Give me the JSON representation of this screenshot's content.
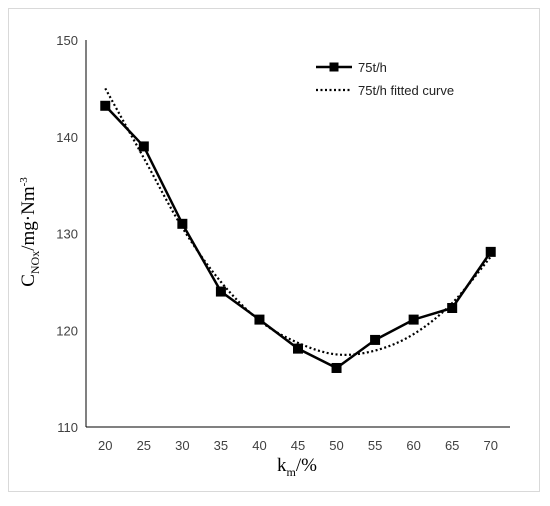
{
  "chart_data": {
    "type": "line",
    "xlabel": {
      "main": "k",
      "sub": "m",
      "rest": "/%"
    },
    "ylabel": {
      "main": "C",
      "sub": "NOx",
      "rest": "/mg·Nm",
      "sup": "-3"
    },
    "x": [
      20,
      25,
      30,
      35,
      40,
      45,
      50,
      55,
      60,
      65,
      70
    ],
    "ylim": [
      110,
      150
    ],
    "yticks": [
      110,
      120,
      130,
      140,
      150
    ],
    "grid": false,
    "legend_position": "top-right",
    "series": [
      {
        "name": "75t/h",
        "style": "solid-square-markers",
        "color": "#000000",
        "values": [
          143.2,
          139.0,
          131.0,
          124.0,
          121.1,
          118.1,
          116.1,
          119.0,
          121.1,
          122.3,
          128.1
        ]
      },
      {
        "name": "75t/h fitted curve",
        "style": "dotted",
        "color": "#000000",
        "values": [
          145.0,
          137.8,
          130.6,
          125.0,
          121.0,
          118.7,
          117.5,
          117.9,
          119.6,
          122.8,
          127.6
        ]
      }
    ]
  }
}
